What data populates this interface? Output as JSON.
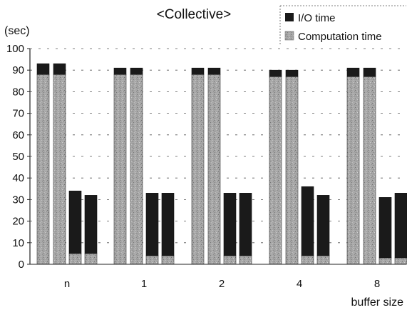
{
  "chart_data": {
    "type": "bar",
    "stacked": true,
    "title": "<Collective>",
    "ylabel": "(sec)",
    "xlabel": "buffer size",
    "ylim": [
      0,
      100
    ],
    "yticks": [
      0,
      10,
      20,
      30,
      40,
      50,
      60,
      70,
      80,
      90,
      100
    ],
    "grid": "horizontal dashed",
    "legend_position": "top-right",
    "categories": [
      "n",
      "1",
      "2",
      "4",
      "8"
    ],
    "bars_per_category": 4,
    "series": [
      {
        "name": "Computation time",
        "color": "#a8a8a8",
        "values": [
          [
            88,
            88,
            5,
            5
          ],
          [
            88,
            88,
            4,
            4
          ],
          [
            88,
            88,
            4,
            4
          ],
          [
            87,
            87,
            4,
            4
          ],
          [
            87,
            87,
            3,
            3
          ]
        ]
      },
      {
        "name": "I/O time",
        "color": "#1a1a1a",
        "values": [
          [
            5,
            5,
            29,
            27
          ],
          [
            3,
            3,
            29,
            29
          ],
          [
            3,
            3,
            29,
            29
          ],
          [
            3,
            3,
            32,
            28
          ],
          [
            4,
            4,
            28,
            30
          ]
        ]
      }
    ]
  }
}
